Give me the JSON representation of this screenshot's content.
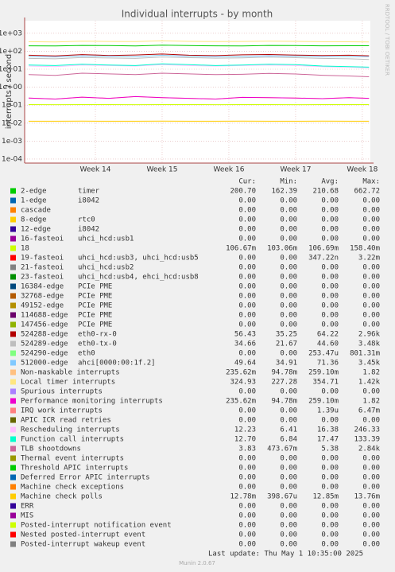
{
  "chart_data": {
    "type": "line",
    "title": "Individual interrupts - by month",
    "y_label": "interrupts / second",
    "side_text": "RRDTOOL / TOBI OETIKER",
    "log_y": true,
    "grid": true,
    "xlim": [
      12.94,
      18.12
    ],
    "xticks": [
      {
        "value": 14,
        "label": "Week 14"
      },
      {
        "value": 15,
        "label": "Week 15"
      },
      {
        "value": 16,
        "label": "Week 16"
      },
      {
        "value": 17,
        "label": "Week 17"
      },
      {
        "value": 18,
        "label": "Week 18"
      }
    ],
    "ylim": [
      6e-05,
      5000
    ],
    "yticks": [
      {
        "value": 1000,
        "label": "1e+03"
      },
      {
        "value": 100,
        "label": "1e+02"
      },
      {
        "value": 10,
        "label": "1e+01"
      },
      {
        "value": 1,
        "label": "1e+00"
      },
      {
        "value": 0.1,
        "label": "1e-01"
      },
      {
        "value": 0.01,
        "label": "1e-02"
      },
      {
        "value": 0.001,
        "label": "1e-03"
      },
      {
        "value": 0.0001,
        "label": "1e-04"
      }
    ],
    "x": [
      13.0,
      13.4,
      13.8,
      14.2,
      14.6,
      15.0,
      15.4,
      15.8,
      16.2,
      16.6,
      17.0,
      17.4,
      17.8,
      18.1
    ],
    "legend_header": [
      "Cur:",
      "Min:",
      "Avg:",
      "Max:"
    ],
    "series": [
      {
        "name": "2-edge",
        "device": "timer",
        "color": "#00cc00",
        "cur": "200.70",
        "min": "162.39",
        "avg": "210.68",
        "max": "662.72",
        "values": [
          200,
          195,
          210,
          205,
          198,
          220,
          205,
          200,
          196,
          210,
          205,
          200,
          202,
          201
        ]
      },
      {
        "name": "1-edge",
        "device": "i8042",
        "color": "#0066b3",
        "cur": "0.00",
        "min": "0.00",
        "avg": "0.00",
        "max": "0.00"
      },
      {
        "name": "cascade",
        "color": "#ff8000",
        "cur": "0.00",
        "min": "0.00",
        "avg": "0.00",
        "max": "0.00"
      },
      {
        "name": "8-edge",
        "device": "rtc0",
        "color": "#ffcc00",
        "cur": "0.00",
        "min": "0.00",
        "avg": "0.00",
        "max": "0.00"
      },
      {
        "name": "12-edge",
        "device": "i8042",
        "color": "#330099",
        "cur": "0.00",
        "min": "0.00",
        "avg": "0.00",
        "max": "0.00"
      },
      {
        "name": "16-fasteoi",
        "device": "uhci_hcd:usb1",
        "color": "#990099",
        "cur": "0.00",
        "min": "0.00",
        "avg": "0.00",
        "max": "0.00"
      },
      {
        "name": "18",
        "color": "#ccff00",
        "cur": "106.67m",
        "min": "103.06m",
        "avg": "106.69m",
        "max": "158.40m",
        "values": [
          0.107,
          0.106,
          0.107,
          0.107,
          0.106,
          0.107,
          0.107,
          0.106,
          0.107,
          0.107,
          0.106,
          0.107,
          0.107,
          0.107
        ]
      },
      {
        "name": "19-fasteoi",
        "device": "uhci_hcd:usb3, uhci_hcd:usb5",
        "color": "#ff0000",
        "cur": "0.00",
        "min": "0.00",
        "avg": "347.22n",
        "max": "3.22m"
      },
      {
        "name": "21-fasteoi",
        "device": "uhci_hcd:usb2",
        "color": "#808080",
        "cur": "0.00",
        "min": "0.00",
        "avg": "0.00",
        "max": "0.00"
      },
      {
        "name": "23-fasteoi",
        "device": "uhci_hcd:usb4, ehci_hcd:usb8",
        "color": "#008f00",
        "cur": "0.00",
        "min": "0.00",
        "avg": "0.00",
        "max": "0.00"
      },
      {
        "name": "16384-edge",
        "device": "PCIe PME",
        "color": "#00487d",
        "cur": "0.00",
        "min": "0.00",
        "avg": "0.00",
        "max": "0.00"
      },
      {
        "name": "32768-edge",
        "device": "PCIe PME",
        "color": "#b35a00",
        "cur": "0.00",
        "min": "0.00",
        "avg": "0.00",
        "max": "0.00"
      },
      {
        "name": "49152-edge",
        "device": "PCIe PME",
        "color": "#b38f00",
        "cur": "0.00",
        "min": "0.00",
        "avg": "0.00",
        "max": "0.00"
      },
      {
        "name": "114688-edge",
        "device": "PCIe PME",
        "color": "#6b006b",
        "cur": "0.00",
        "min": "0.00",
        "avg": "0.00",
        "max": "0.00"
      },
      {
        "name": "147456-edge",
        "device": "PCIe PME",
        "color": "#8fb300",
        "cur": "0.00",
        "min": "0.00",
        "avg": "0.00",
        "max": "0.00"
      },
      {
        "name": "524288-edge",
        "device": "eth0-rx-0",
        "color": "#b30000",
        "cur": "56.43",
        "min": "35.25",
        "avg": "64.22",
        "max": "2.96k",
        "values": [
          60,
          55,
          65,
          58,
          62,
          70,
          60,
          57,
          63,
          66,
          61,
          58,
          60,
          56
        ]
      },
      {
        "name": "524289-edge",
        "device": "eth0-tx-0",
        "color": "#bebebe",
        "cur": "34.66",
        "min": "21.67",
        "avg": "44.60",
        "max": "3.48k",
        "values": [
          40,
          38,
          45,
          42,
          40,
          48,
          44,
          41,
          43,
          47,
          44,
          40,
          38,
          35
        ]
      },
      {
        "name": "524290-edge",
        "device": "eth0",
        "color": "#80ff80",
        "cur": "0.00",
        "min": "0.00",
        "avg": "253.47u",
        "max": "801.31m"
      },
      {
        "name": "512000-edge",
        "device": "ahci[0000:00:1f.2]",
        "color": "#80c9ff",
        "cur": "49.64",
        "min": "34.91",
        "avg": "71.36",
        "max": "3.45k",
        "values": [
          50,
          48,
          55,
          52,
          50,
          60,
          52,
          49,
          51,
          56,
          53,
          50,
          49,
          50
        ]
      },
      {
        "name": "Non-maskable interrupts",
        "color": "#ffc080",
        "cur": "235.62m",
        "min": "94.78m",
        "avg": "259.10m",
        "max": "1.82",
        "values": [
          0.25,
          0.22,
          0.28,
          0.24,
          0.3,
          0.26,
          0.24,
          0.22,
          0.27,
          0.26,
          0.25,
          0.23,
          0.26,
          0.24
        ]
      },
      {
        "name": "Local timer interrupts",
        "color": "#ffe680",
        "cur": "324.93",
        "min": "227.28",
        "avg": "354.71",
        "max": "1.42k",
        "values": [
          340,
          330,
          360,
          350,
          345,
          380,
          355,
          345,
          350,
          365,
          355,
          340,
          335,
          325
        ]
      },
      {
        "name": "Spurious interrupts",
        "color": "#aa80ff",
        "cur": "0.00",
        "min": "0.00",
        "avg": "0.00",
        "max": "0.00"
      },
      {
        "name": "Performance monitoring interrupts",
        "color": "#ee00cc",
        "cur": "235.62m",
        "min": "94.78m",
        "avg": "259.10m",
        "max": "1.82",
        "values": [
          0.25,
          0.22,
          0.28,
          0.24,
          0.3,
          0.26,
          0.24,
          0.22,
          0.27,
          0.26,
          0.25,
          0.23,
          0.26,
          0.24
        ]
      },
      {
        "name": "IRQ work interrupts",
        "color": "#ff8080",
        "cur": "0.00",
        "min": "0.00",
        "avg": "1.39u",
        "max": "6.47m"
      },
      {
        "name": "APIC ICR read retries",
        "color": "#666600",
        "cur": "0.00",
        "min": "0.00",
        "avg": "0.00",
        "max": "0.00"
      },
      {
        "name": "Rescheduling interrupts",
        "color": "#ffbfff",
        "cur": "12.23",
        "min": "6.41",
        "avg": "16.38",
        "max": "246.33",
        "values": [
          15,
          14,
          17,
          16,
          15,
          18,
          16,
          15,
          16,
          17,
          16,
          14,
          13,
          12
        ]
      },
      {
        "name": "Function call interrupts",
        "color": "#00ffcc",
        "cur": "12.70",
        "min": "6.84",
        "avg": "17.47",
        "max": "133.39",
        "values": [
          17,
          16,
          19,
          17,
          16,
          20,
          18,
          16,
          17,
          19,
          18,
          15,
          14,
          13
        ]
      },
      {
        "name": "TLB shootdowns",
        "color": "#cc6699",
        "cur": "3.83",
        "min": "473.67m",
        "avg": "5.38",
        "max": "2.84k",
        "values": [
          5,
          4.5,
          6,
          5.5,
          5,
          6,
          5.5,
          5,
          5.2,
          5.8,
          5.4,
          4.6,
          4.2,
          3.8
        ]
      },
      {
        "name": "Thermal event interrupts",
        "color": "#999900",
        "cur": "0.00",
        "min": "0.00",
        "avg": "0.00",
        "max": "0.00"
      },
      {
        "name": "Threshold APIC interrupts",
        "color": "#00cc00",
        "cur": "0.00",
        "min": "0.00",
        "avg": "0.00",
        "max": "0.00"
      },
      {
        "name": "Deferred Error APIC interrupts",
        "color": "#0066b3",
        "cur": "0.00",
        "min": "0.00",
        "avg": "0.00",
        "max": "0.00"
      },
      {
        "name": "Machine check exceptions",
        "color": "#ff8000",
        "cur": "0.00",
        "min": "0.00",
        "avg": "0.00",
        "max": "0.00"
      },
      {
        "name": "Machine check polls",
        "color": "#ffcc00",
        "cur": "12.78m",
        "min": "398.67u",
        "avg": "12.85m",
        "max": "13.76m",
        "values": [
          0.0128,
          0.0128,
          0.0129,
          0.0128,
          0.0128,
          0.0129,
          0.0128,
          0.0128,
          0.0129,
          0.0128,
          0.0128,
          0.0129,
          0.0128,
          0.0128
        ]
      },
      {
        "name": "ERR",
        "color": "#330099",
        "cur": "0.00",
        "min": "0.00",
        "avg": "0.00",
        "max": "0.00"
      },
      {
        "name": "MIS",
        "color": "#990099",
        "cur": "0.00",
        "min": "0.00",
        "avg": "0.00",
        "max": "0.00"
      },
      {
        "name": "Posted-interrupt notification event",
        "color": "#ccff00",
        "cur": "0.00",
        "min": "0.00",
        "avg": "0.00",
        "max": "0.00"
      },
      {
        "name": "Nested posted-interrupt event",
        "color": "#ff0000",
        "cur": "0.00",
        "min": "0.00",
        "avg": "0.00",
        "max": "0.00"
      },
      {
        "name": "Posted-interrupt wakeup event",
        "color": "#808080",
        "cur": "0.00",
        "min": "0.00",
        "avg": "0.00",
        "max": "0.00"
      }
    ],
    "last_update": "Last update: Thu May  1 10:35:00 2025",
    "footer": "Munin 2.0.67"
  }
}
